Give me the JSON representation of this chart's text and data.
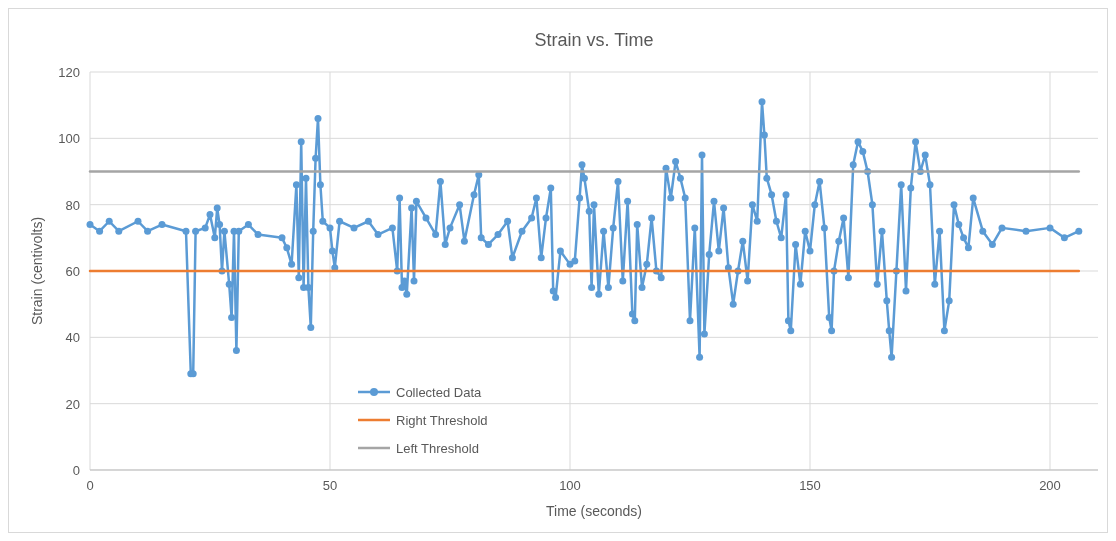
{
  "chart_data": {
    "type": "line",
    "title": "Strain vs. Time",
    "xlabel": "Time (seconds)",
    "ylabel": "Strain (centivolts)",
    "xlim": [
      0,
      210
    ],
    "xticks": [
      0,
      50,
      100,
      150,
      200
    ],
    "ylim": [
      0,
      120
    ],
    "yticks": [
      0,
      20,
      40,
      60,
      80,
      100,
      120
    ],
    "grid": true,
    "legend": "bottom left",
    "series": [
      {
        "name": "Collected Data",
        "color": "#5b9bd5",
        "marker": "circle",
        "x": [
          0,
          2,
          4,
          6,
          10,
          12,
          15,
          20,
          21,
          21.5,
          22,
          24,
          25,
          26,
          26.5,
          27,
          27.5,
          28,
          29,
          29.5,
          30,
          30.5,
          31,
          33,
          35,
          40,
          41,
          42,
          43,
          43.5,
          44,
          44.5,
          45,
          45.5,
          46,
          46.5,
          47,
          47.5,
          48,
          48.5,
          50,
          50.5,
          51,
          52,
          55,
          58,
          60,
          63,
          64,
          64.5,
          65,
          65.5,
          66,
          67,
          67.5,
          68,
          70,
          72,
          73,
          74,
          75,
          77,
          78,
          80,
          81,
          81.5,
          83,
          85,
          87,
          88,
          90,
          92,
          93,
          94,
          95,
          96,
          96.5,
          97,
          98,
          100,
          101,
          102,
          102.5,
          103,
          104,
          104.5,
          105,
          106,
          107,
          108,
          109,
          110,
          111,
          112,
          113,
          113.5,
          114,
          115,
          116,
          117,
          118,
          119,
          120,
          121,
          122,
          123,
          124,
          125,
          126,
          127,
          127.5,
          128,
          129,
          130,
          131,
          132,
          133,
          134,
          135,
          136,
          137,
          138,
          139,
          140,
          140.5,
          141,
          142,
          143,
          144,
          145,
          145.5,
          146,
          147,
          148,
          149,
          150,
          151,
          152,
          153,
          154,
          154.5,
          155,
          156,
          157,
          158,
          159,
          160,
          161,
          162,
          163,
          164,
          165,
          166,
          166.5,
          167,
          168,
          169,
          170,
          171,
          172,
          173,
          174,
          175,
          176,
          177,
          178,
          179,
          180,
          181,
          182,
          183,
          184,
          186,
          188,
          190,
          195,
          200,
          203,
          206
        ],
        "values": [
          74,
          72,
          75,
          72,
          75,
          72,
          74,
          72,
          29,
          29,
          72,
          73,
          77,
          70,
          79,
          74,
          60,
          72,
          56,
          46,
          72,
          36,
          72,
          74,
          71,
          70,
          67,
          62,
          86,
          58,
          99,
          55,
          88,
          55,
          43,
          72,
          94,
          106,
          86,
          75,
          73,
          66,
          61,
          75,
          73,
          75,
          71,
          73,
          60,
          82,
          55,
          57,
          53,
          79,
          57,
          81,
          76,
          71,
          87,
          68,
          73,
          80,
          69,
          83,
          89,
          70,
          68,
          71,
          75,
          64,
          72,
          76,
          82,
          64,
          76,
          85,
          54,
          52,
          66,
          62,
          63,
          82,
          92,
          88,
          78,
          55,
          80,
          53,
          72,
          55,
          73,
          87,
          57,
          81,
          47,
          45,
          74,
          55,
          62,
          76,
          60,
          58,
          91,
          82,
          93,
          88,
          82,
          45,
          73,
          34,
          95,
          41,
          65,
          81,
          66,
          79,
          61,
          50,
          60,
          69,
          57,
          80,
          75,
          111,
          101,
          88,
          83,
          75,
          70,
          83,
          45,
          42,
          68,
          56,
          72,
          66,
          80,
          87,
          73,
          46,
          42,
          60,
          69,
          76,
          58,
          92,
          99,
          96,
          90,
          80,
          56,
          72,
          51,
          42,
          34,
          60,
          86,
          54,
          85,
          99,
          90,
          95,
          86,
          56,
          72,
          42,
          51,
          80,
          74,
          70,
          67,
          82,
          72,
          68,
          73,
          72,
          73,
          70,
          72
        ]
      },
      {
        "name": "Right Threshold",
        "color": "#ed7d31",
        "marker": "none",
        "x": [
          0,
          206
        ],
        "values": [
          60,
          60
        ]
      },
      {
        "name": "Left Threshold",
        "color": "#a5a5a5",
        "marker": "none",
        "x": [
          0,
          206
        ],
        "values": [
          90,
          90
        ]
      }
    ]
  }
}
